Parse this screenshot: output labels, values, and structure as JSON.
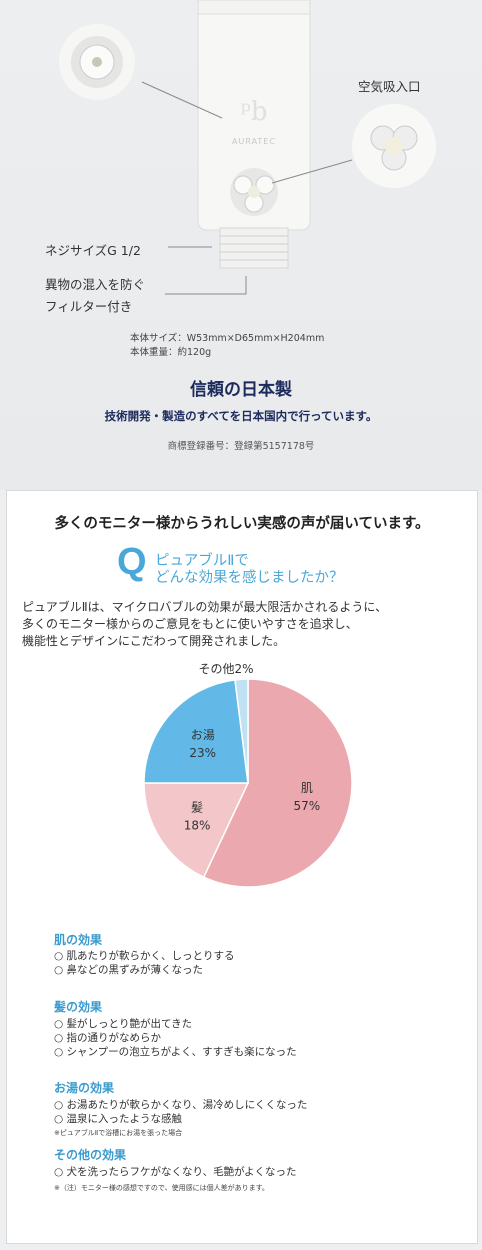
{
  "product": {
    "callout_air_inlet": "空気吸入口",
    "callout_thread": "ネジサイズG 1/2",
    "callout_filter_line1": "異物の混入を防ぐ",
    "callout_filter_line2": "フィルター付き",
    "brand_mark": "AURATEC",
    "spec_size": "本体サイズ：W53mm×D65mm×H204mm",
    "spec_weight": "本体重量：約120g",
    "made_title": "信頼の日本製",
    "made_subtitle": "技術開発・製造のすべてを日本国内で行っています。",
    "trademark": "商標登録番号：登録第5157178号"
  },
  "survey": {
    "heading": "多くのモニター様からうれしい実感の声が届いています。",
    "q_mark": "Q",
    "question_line1": "ピュアブルⅡで",
    "question_line2": "どんな効果を感じましたか？",
    "intro_line1": "ピュアブルⅡは、マイクロバブルの効果が最大限活かされるように、",
    "intro_line2": "多くのモニター様からのご意見をもとに使いやすさを追求し、",
    "intro_line3": "機能性とデザインにこだわって開発されました。",
    "effects": {
      "skin_title": "肌の効果",
      "skin_1": "○ 肌あたりが軟らかく、しっとりする",
      "skin_2": "○ 鼻などの黒ずみが薄くなった",
      "hair_title": "髪の効果",
      "hair_1": "○ 髪がしっとり艶が出てきた",
      "hair_2": "○ 指の通りがなめらか",
      "hair_3": "○ シャンプーの泡立ちがよく、すすぎも楽になった",
      "bath_title": "お湯の効果",
      "bath_1": "○ お湯あたりが軟らかくなり、湯冷めしにくくなった",
      "bath_2": "○ 温泉に入ったような感触",
      "bath_note": "※ピュアブルⅡで浴槽にお湯を張った場合",
      "other_title": "その他の効果",
      "other_1": "○ 犬を洗ったらフケがなくなり、毛艶がよくなった",
      "footnote": "※（注）モニター様の感想ですので、使用感には個人差があります。"
    }
  },
  "chart_data": {
    "type": "pie",
    "title": "",
    "slices": [
      {
        "label": "肌",
        "value": 57,
        "value_label": "57%",
        "color": "#eba8ae"
      },
      {
        "label": "髪",
        "value": 18,
        "value_label": "18%",
        "color": "#f3c6ca"
      },
      {
        "label": "お湯",
        "value": 23,
        "value_label": "23%",
        "color": "#62b9e8"
      },
      {
        "label": "その他",
        "value": 2,
        "value_label": "2%",
        "color": "#bfe1f2"
      }
    ],
    "other_label_combined": "その他2%"
  }
}
